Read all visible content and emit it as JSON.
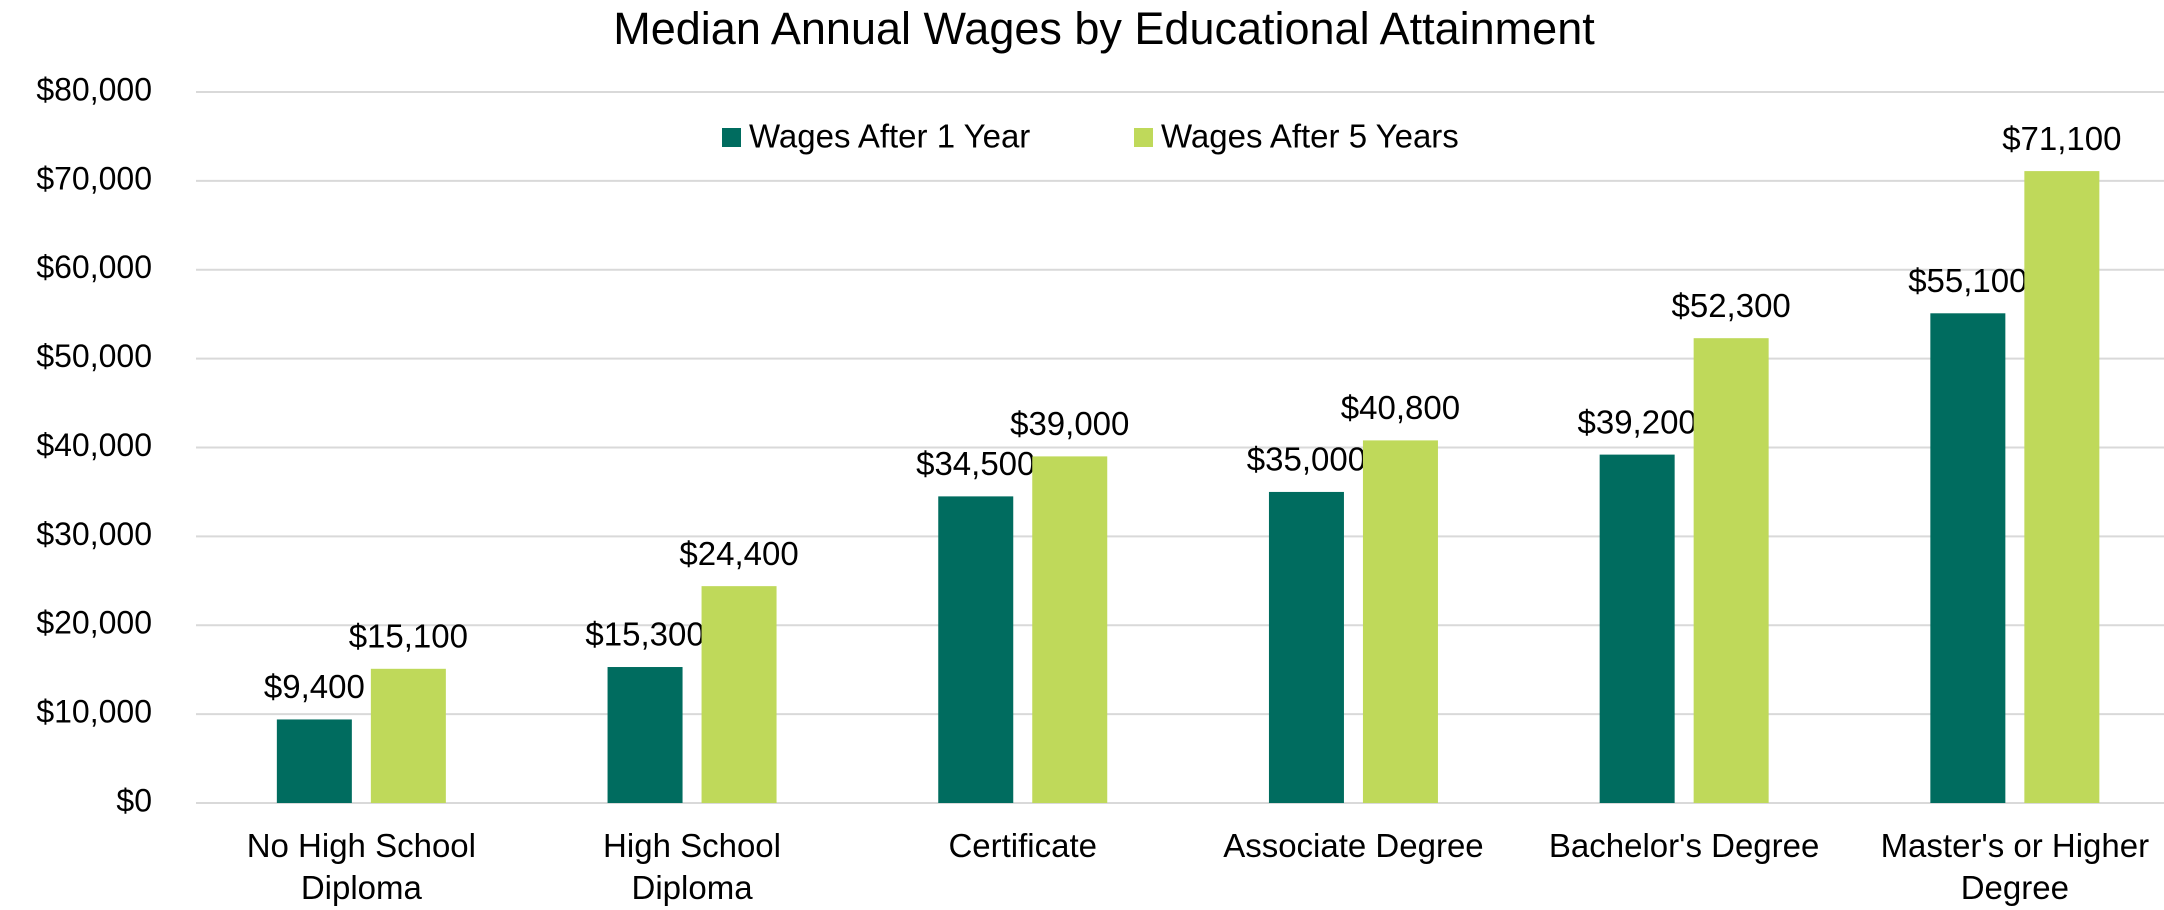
{
  "chart_data": {
    "type": "bar",
    "title": "Median Annual Wages by Educational Attainment",
    "categories": [
      "No High School\nDiploma",
      "High School\nDiploma",
      "Certificate",
      "Associate Degree",
      "Bachelor's Degree",
      "Master's or Higher\nDegree"
    ],
    "series": [
      {
        "name": "Wages After 1 Year",
        "color": "#006c5f",
        "values": [
          9400,
          15300,
          34500,
          35000,
          39200,
          55100
        ],
        "value_labels": [
          "$9,400",
          "$15,300",
          "$34,500",
          "$35,000",
          "$39,200",
          "$55,100"
        ]
      },
      {
        "name": "Wages After 5 Years",
        "color": "#bfd95a",
        "values": [
          15100,
          24400,
          39000,
          40800,
          52300,
          71100
        ],
        "value_labels": [
          "$15,100",
          "$24,400",
          "$39,000",
          "$40,800",
          "$52,300",
          "$71,100"
        ]
      }
    ],
    "ylim": [
      0,
      80000
    ],
    "yticks": [
      {
        "value": 0,
        "label": "$0"
      },
      {
        "value": 10000,
        "label": "$10,000"
      },
      {
        "value": 20000,
        "label": "$20,000"
      },
      {
        "value": 30000,
        "label": "$30,000"
      },
      {
        "value": 40000,
        "label": "$40,000"
      },
      {
        "value": 50000,
        "label": "$50,000"
      },
      {
        "value": 60000,
        "label": "$60,000"
      },
      {
        "value": 70000,
        "label": "$70,000"
      },
      {
        "value": 80000,
        "label": "$80,000"
      }
    ],
    "grid": true,
    "legend": "top"
  }
}
